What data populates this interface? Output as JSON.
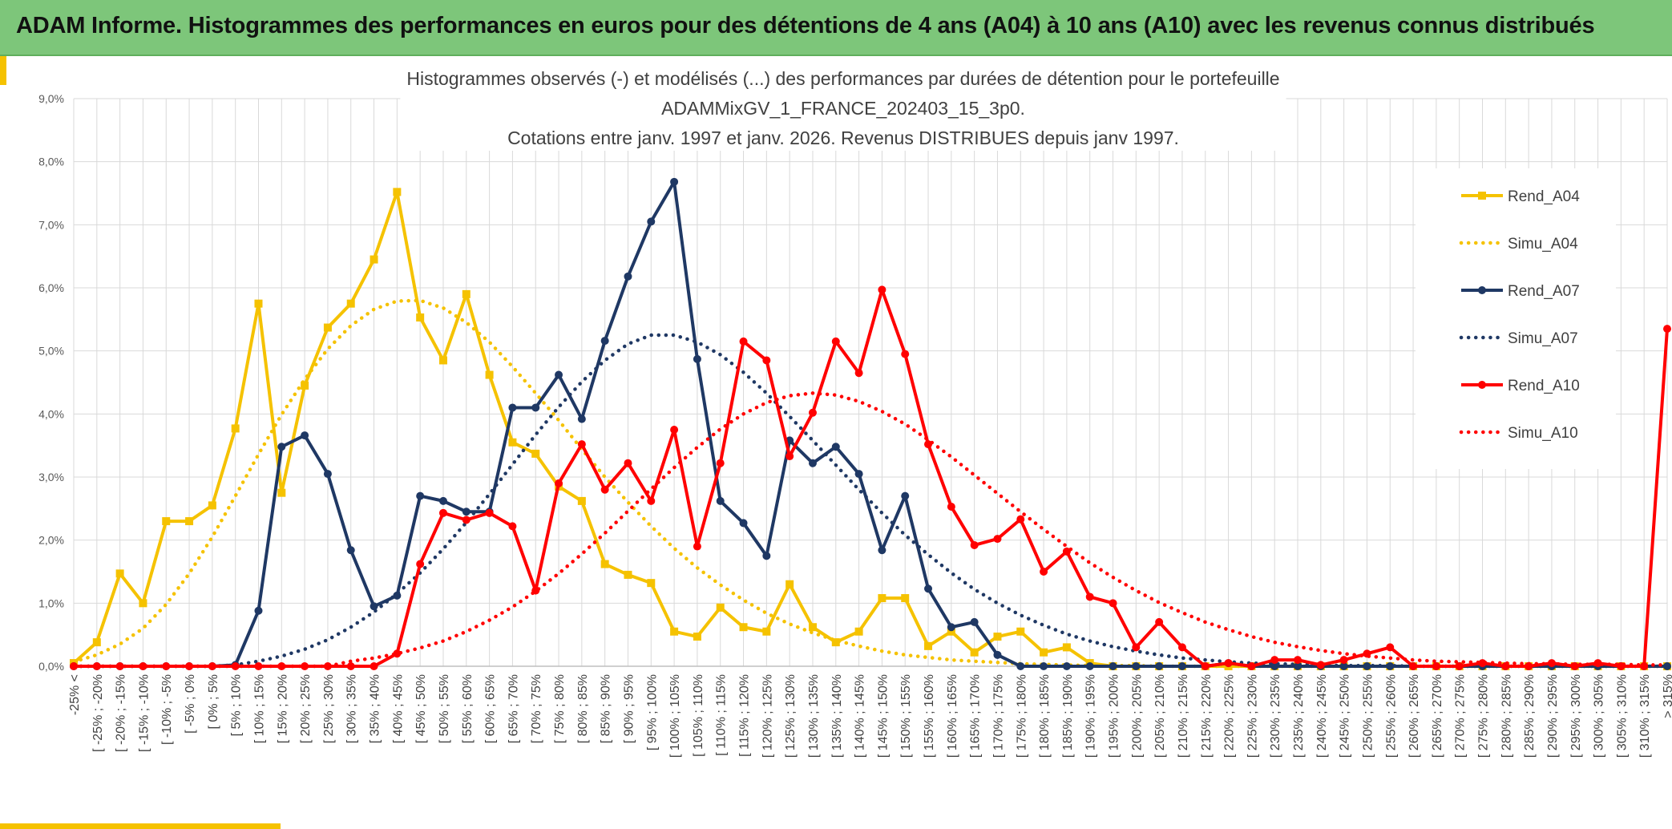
{
  "banner": {
    "title": "ADAM Informe. Histogrammes des performances en euros pour des détentions de 4 ans (A04) à 10 ans (A10) avec les revenus connus distribués"
  },
  "colors": {
    "a04": "#f5c200",
    "a07": "#1f3864",
    "a10": "#ff0000",
    "banner": "#7dc67a"
  },
  "chart_data": {
    "type": "line",
    "title_lines": [
      "Histogrammes observés (-) et modélisés (...) des performances par durées de détention pour le portefeuille",
      "ADAMMixGV_1_FRANCE_202403_15_3p0.",
      "Cotations entre janv. 1997 et janv. 2026. Revenus DISTRIBUES depuis janv 1997."
    ],
    "ylim": [
      0,
      9
    ],
    "yticks": [
      "0,0%",
      "1,0%",
      "2,0%",
      "3,0%",
      "4,0%",
      "5,0%",
      "6,0%",
      "7,0%",
      "8,0%",
      "9,0%"
    ],
    "categories": [
      "-25% <",
      "[ -25% ; -20%",
      "[ -20% ; -15%",
      "[ -15% ; -10%",
      "[ -10% ; -5%",
      "[ -5% ; 0%",
      "[ 0% ; 5%",
      "[ 5% ; 10%",
      "[ 10% ; 15%",
      "[ 15% ; 20%",
      "[ 20% ; 25%",
      "[ 25% ; 30%",
      "[ 30% ; 35%",
      "[ 35% ; 40%",
      "[ 40% ; 45%",
      "[ 45% ; 50%",
      "[ 50% ; 55%",
      "[ 55% ; 60%",
      "[ 60% ; 65%",
      "[ 65% ; 70%",
      "[ 70% ; 75%",
      "[ 75% ; 80%",
      "[ 80% ; 85%",
      "[ 85% ; 90%",
      "[ 90% ; 95%",
      "[ 95% ; 100%",
      "[ 100% ; 105%",
      "[ 105% ; 110%",
      "[ 110% ; 115%",
      "[ 115% ; 120%",
      "[ 120% ; 125%",
      "[ 125% ; 130%",
      "[ 130% ; 135%",
      "[ 135% ; 140%",
      "[ 140% ; 145%",
      "[ 145% ; 150%",
      "[ 150% ; 155%",
      "[ 155% ; 160%",
      "[ 160% ; 165%",
      "[ 165% ; 170%",
      "[ 170% ; 175%",
      "[ 175% ; 180%",
      "[ 180% ; 185%",
      "[ 185% ; 190%",
      "[ 190% ; 195%",
      "[ 195% ; 200%",
      "[ 200% ; 205%",
      "[ 205% ; 210%",
      "[ 210% ; 215%",
      "[ 215% ; 220%",
      "[ 220% ; 225%",
      "[ 225% ; 230%",
      "[ 230% ; 235%",
      "[ 235% ; 240%",
      "[ 240% ; 245%",
      "[ 245% ; 250%",
      "[ 250% ; 255%",
      "[ 255% ; 260%",
      "[ 260% ; 265%",
      "[ 265% ; 270%",
      "[ 270% ; 275%",
      "[ 275% ; 280%",
      "[ 280% ; 285%",
      "[ 285% ; 290%",
      "[ 290% ; 295%",
      "[ 295% ; 300%",
      "[ 300% ; 305%",
      "[ 305% ; 310%",
      "[ 310% ; 315%",
      "> 315%"
    ],
    "series": [
      {
        "name": "Rend_A04",
        "style": "solid",
        "marker": "square",
        "color": "#f5c200",
        "values": [
          0.05,
          0.38,
          1.47,
          1.0,
          2.3,
          2.3,
          2.55,
          3.77,
          5.75,
          2.75,
          4.45,
          5.37,
          5.75,
          6.45,
          7.52,
          5.53,
          4.85,
          5.9,
          4.62,
          3.55,
          3.37,
          2.85,
          2.62,
          1.62,
          1.45,
          1.32,
          0.55,
          0.47,
          0.93,
          0.62,
          0.55,
          1.3,
          0.62,
          0.38,
          0.55,
          1.08,
          1.08,
          0.32,
          0.55,
          0.22,
          0.47,
          0.55,
          0.22,
          0.3,
          0.05,
          0,
          0,
          0,
          0,
          0,
          0,
          0,
          0,
          0,
          0,
          0,
          0,
          0,
          0,
          0,
          0,
          0,
          0,
          0,
          0,
          0,
          0,
          0,
          0,
          0
        ]
      },
      {
        "name": "Simu_A04",
        "style": "dotted",
        "color": "#f5c200",
        "values": [
          0.07,
          0.18,
          0.35,
          0.6,
          0.98,
          1.47,
          2.05,
          2.7,
          3.36,
          3.99,
          4.55,
          5.03,
          5.4,
          5.66,
          5.79,
          5.8,
          5.68,
          5.45,
          5.14,
          4.75,
          4.33,
          3.9,
          3.44,
          3.0,
          2.6,
          2.22,
          1.87,
          1.56,
          1.29,
          1.05,
          0.84,
          0.67,
          0.53,
          0.41,
          0.32,
          0.24,
          0.18,
          0.14,
          0.1,
          0.08,
          0.06,
          0.04,
          0.03,
          0.02,
          0.01,
          0.01,
          0.01,
          0,
          0,
          0,
          0,
          0,
          0,
          0,
          0,
          0,
          0,
          0,
          0,
          0,
          0,
          0,
          0,
          0,
          0,
          0,
          0,
          0,
          0,
          0
        ]
      },
      {
        "name": "Rend_A07",
        "style": "solid",
        "marker": "circle",
        "color": "#1f3864",
        "values": [
          0,
          0,
          0,
          0,
          0,
          0,
          0,
          0.02,
          0.88,
          3.48,
          3.66,
          3.05,
          1.84,
          0.95,
          1.12,
          2.7,
          2.62,
          2.45,
          2.45,
          4.1,
          4.1,
          4.62,
          3.92,
          5.16,
          6.18,
          7.05,
          7.68,
          4.87,
          2.62,
          2.27,
          1.75,
          3.58,
          3.22,
          3.48,
          3.05,
          1.84,
          2.7,
          1.23,
          0.62,
          0.7,
          0.18,
          0,
          0,
          0,
          0,
          0,
          0,
          0,
          0,
          0,
          0.05,
          0,
          0,
          0,
          0,
          0,
          0,
          0,
          0,
          0,
          0,
          0,
          0,
          0,
          0,
          0,
          0,
          0,
          0,
          0
        ]
      },
      {
        "name": "Simu_A07",
        "style": "dotted",
        "color": "#1f3864",
        "values": [
          0,
          0,
          0,
          0,
          0,
          0,
          0,
          0.02,
          0.08,
          0.16,
          0.27,
          0.42,
          0.62,
          0.86,
          1.15,
          1.48,
          1.86,
          2.28,
          2.73,
          3.2,
          3.67,
          4.11,
          4.51,
          4.85,
          5.11,
          5.25,
          5.25,
          5.14,
          4.94,
          4.66,
          4.33,
          3.96,
          3.58,
          3.19,
          2.8,
          2.43,
          2.08,
          1.77,
          1.48,
          1.22,
          1.0,
          0.81,
          0.65,
          0.51,
          0.4,
          0.31,
          0.24,
          0.18,
          0.13,
          0.1,
          0.07,
          0.05,
          0.04,
          0.03,
          0.02,
          0.01,
          0.01,
          0.01,
          0,
          0,
          0,
          0,
          0,
          0,
          0,
          0,
          0,
          0,
          0,
          0
        ]
      },
      {
        "name": "Rend_A10",
        "style": "solid",
        "marker": "circle",
        "color": "#ff0000",
        "values": [
          0,
          0,
          0,
          0,
          0,
          0,
          0,
          0,
          0,
          0,
          0,
          0,
          0,
          0,
          0.2,
          1.62,
          2.43,
          2.32,
          2.43,
          2.22,
          1.2,
          2.9,
          3.52,
          2.8,
          3.22,
          2.62,
          3.75,
          1.9,
          3.22,
          5.15,
          4.85,
          3.33,
          4.02,
          5.15,
          4.65,
          5.97,
          4.95,
          3.52,
          2.53,
          1.92,
          2.02,
          2.33,
          1.5,
          1.82,
          1.1,
          1.0,
          0.3,
          0.7,
          0.3,
          0,
          0.05,
          0,
          0.1,
          0.1,
          0.02,
          0.1,
          0.2,
          0.3,
          0,
          0,
          0,
          0.05,
          0,
          0,
          0.05,
          0,
          0.05,
          0,
          0,
          5.35
        ]
      },
      {
        "name": "Simu_A10",
        "style": "dotted",
        "color": "#ff0000",
        "values": [
          0,
          0,
          0,
          0,
          0,
          0,
          0,
          0,
          0,
          0,
          0,
          0,
          0.08,
          0.13,
          0.2,
          0.29,
          0.4,
          0.55,
          0.73,
          0.94,
          1.19,
          1.47,
          1.78,
          2.11,
          2.46,
          2.81,
          3.15,
          3.47,
          3.76,
          4.0,
          4.18,
          4.29,
          4.33,
          4.3,
          4.2,
          4.04,
          3.84,
          3.59,
          3.32,
          3.03,
          2.74,
          2.45,
          2.17,
          1.9,
          1.64,
          1.41,
          1.2,
          1.01,
          0.85,
          0.7,
          0.58,
          0.47,
          0.38,
          0.31,
          0.25,
          0.2,
          0.16,
          0.13,
          0.1,
          0.08,
          0.07,
          0.06,
          0.05,
          0.04,
          0.04,
          0.03,
          0.03,
          0.03,
          0.02,
          0.02
        ]
      }
    ],
    "legend_position": "right",
    "grid": true
  }
}
